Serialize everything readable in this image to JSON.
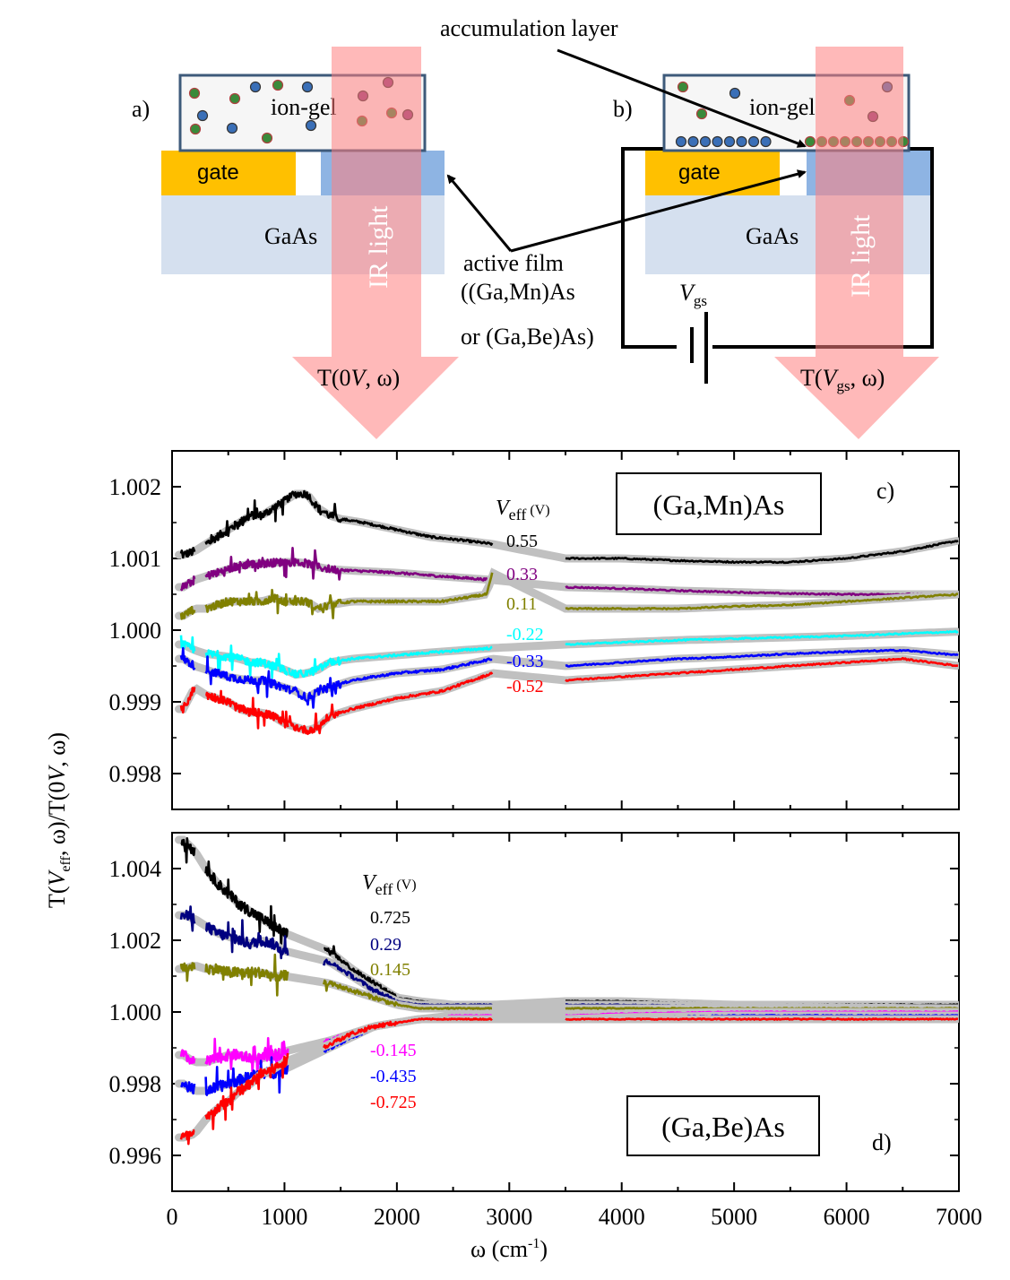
{
  "schematic": {
    "panel_a_label": "a)",
    "panel_b_label": "b)",
    "ion_gel": "ion-gel",
    "gate": "gate",
    "substrate": "GaAs",
    "ir_light": "IR light",
    "accumulation_layer": "accumulation layer",
    "active_film_line1": "active film",
    "active_film_line2": "((Ga,Mn)As",
    "active_film_line3": "or (Ga,Be)As)",
    "vgs_label": "V",
    "vgs_sub": "gs",
    "t0_prefix": "T(0",
    "t0_italic": "V",
    "t0_suffix": ", ω)",
    "tv_prefix": "T(",
    "tv_italic": "V",
    "tv_sub": "gs",
    "tv_suffix": ", ω)",
    "colors": {
      "gel_fill": "#f6f6f6",
      "gel_border": "#3d5a7a",
      "gate_fill": "#ffc000",
      "substrate_fill": "#d5e0ef",
      "film_fill": "#8eb4e3",
      "beam_fill": "#ff8080",
      "ion_blue": "#3a6fb7",
      "ion_green": "#3a8a3a",
      "ion_red_edge": "#b04040",
      "ion_purple": "#8a3a7a"
    }
  },
  "chart_data": [
    {
      "type": "line",
      "panel_label": "c)",
      "material": "(Ga,Mn)As",
      "legend_title": "V",
      "legend_title_sub": "eff",
      "legend_title_unit": "(V)",
      "ylim": [
        0.9975,
        1.0025
      ],
      "xlim": [
        0,
        7000
      ],
      "yticks": [
        "0.998",
        "0.999",
        "1.000",
        "1.001",
        "1.002"
      ],
      "series": [
        {
          "name": "0.55",
          "color": "#000000",
          "x": [
            100,
            200,
            300,
            400,
            500,
            600,
            700,
            800,
            900,
            1000,
            1100,
            1200,
            1300,
            1400,
            1500,
            1700,
            2000,
            2300,
            2600,
            2850,
            3500,
            4000,
            4500,
            5000,
            5500,
            6000,
            6500,
            7000
          ],
          "y": [
            1.00105,
            1.0011,
            1.0012,
            1.0013,
            1.0014,
            1.0015,
            1.0016,
            1.0016,
            1.0017,
            1.0018,
            1.0019,
            1.0019,
            1.0017,
            1.0016,
            1.00155,
            1.0015,
            1.0014,
            1.0013,
            1.00125,
            1.0012,
            1.001,
            1.001,
            1.00097,
            1.00095,
            1.00095,
            1.001,
            1.0011,
            1.00125
          ]
        },
        {
          "name": "0.33",
          "color": "#800080",
          "x": [
            100,
            200,
            300,
            400,
            500,
            600,
            700,
            800,
            900,
            1000,
            1100,
            1200,
            1300,
            1400,
            1600,
            2000,
            2400,
            2850,
            3500,
            4000,
            4500,
            5000,
            5500,
            6000,
            6500,
            7000
          ],
          "y": [
            1.0006,
            1.0007,
            1.00075,
            1.0008,
            1.00085,
            1.0009,
            1.00092,
            1.00093,
            1.00094,
            1.00095,
            1.00095,
            1.00093,
            1.00088,
            1.00085,
            1.00083,
            1.0008,
            1.00075,
            1.0007,
            1.0006,
            1.00058,
            1.00055,
            1.00053,
            1.00051,
            1.0005,
            1.0005,
            1.0005
          ]
        },
        {
          "name": "0.11",
          "color": "#808000",
          "x": [
            100,
            200,
            300,
            400,
            500,
            600,
            700,
            800,
            900,
            1000,
            1100,
            1200,
            1300,
            1400,
            1600,
            2000,
            2400,
            2800,
            2850,
            3500,
            4000,
            4500,
            5000,
            5500,
            6000,
            6500,
            7000
          ],
          "y": [
            1.0002,
            1.0003,
            1.0003,
            1.00035,
            1.0004,
            1.0004,
            1.0004,
            1.0004,
            1.00045,
            1.0004,
            1.0004,
            1.0004,
            1.0003,
            1.00035,
            1.0004,
            1.0004,
            1.0004,
            1.0005,
            1.0008,
            1.0003,
            1.0003,
            1.0003,
            1.00033,
            1.00035,
            1.0004,
            1.00045,
            1.0005
          ]
        },
        {
          "name": "-0.22",
          "color": "#00ffff",
          "x": [
            100,
            200,
            300,
            400,
            500,
            600,
            700,
            800,
            900,
            1000,
            1100,
            1200,
            1300,
            1400,
            1600,
            2000,
            2400,
            2850,
            3500,
            4000,
            4500,
            5000,
            5500,
            6000,
            6500,
            7000
          ],
          "y": [
            0.9998,
            0.99972,
            0.99967,
            0.99965,
            0.99963,
            0.9996,
            0.99955,
            0.99955,
            0.9995,
            0.99945,
            0.99938,
            0.9994,
            0.99945,
            0.99955,
            0.9996,
            0.99965,
            0.9997,
            0.99975,
            0.9998,
            0.99983,
            0.99986,
            0.99988,
            0.9999,
            0.99992,
            0.99995,
            0.99998
          ]
        },
        {
          "name": "-0.33",
          "color": "#0000ff",
          "x": [
            100,
            200,
            300,
            400,
            500,
            600,
            700,
            800,
            900,
            1000,
            1100,
            1200,
            1300,
            1400,
            1600,
            2000,
            2400,
            2850,
            3500,
            4000,
            4500,
            5000,
            5500,
            6000,
            6500,
            7000
          ],
          "y": [
            0.9996,
            0.9995,
            0.99945,
            0.9994,
            0.99935,
            0.99932,
            0.9993,
            0.9993,
            0.99925,
            0.9992,
            0.99915,
            0.99905,
            0.99915,
            0.9992,
            0.9993,
            0.9994,
            0.99945,
            0.9996,
            0.9995,
            0.99955,
            0.9996,
            0.99963,
            0.99967,
            0.9997,
            0.99972,
            0.99965
          ]
        },
        {
          "name": "-0.52",
          "color": "#ff0000",
          "x": [
            100,
            200,
            300,
            400,
            500,
            600,
            700,
            800,
            900,
            1000,
            1100,
            1200,
            1300,
            1400,
            1600,
            2000,
            2400,
            2850,
            3500,
            4000,
            4500,
            5000,
            5500,
            6000,
            6500,
            7000
          ],
          "y": [
            0.9989,
            0.9992,
            0.9991,
            0.99905,
            0.999,
            0.9989,
            0.99885,
            0.99885,
            0.9988,
            0.9987,
            0.99865,
            0.9986,
            0.99865,
            0.9988,
            0.9989,
            0.99905,
            0.99915,
            0.9994,
            0.9993,
            0.99935,
            0.9994,
            0.99945,
            0.9995,
            0.99955,
            0.9996,
            0.9995
          ]
        }
      ]
    },
    {
      "type": "line",
      "panel_label": "d)",
      "material": "(Ga,Be)As",
      "legend_title": "V",
      "legend_title_sub": "eff",
      "legend_title_unit": "(V)",
      "xlabel": "ω (cm",
      "xlabel_sup": "-1",
      "xlabel_end": ")",
      "ylabel_parts": [
        "T(",
        "V",
        "eff",
        ", ω)/T(0",
        "V",
        ", ω)"
      ],
      "ylim": [
        0.995,
        1.005
      ],
      "xlim": [
        0,
        7000
      ],
      "xticks": [
        "0",
        "1000",
        "2000",
        "3000",
        "4000",
        "5000",
        "6000",
        "7000"
      ],
      "yticks": [
        "0.996",
        "0.998",
        "1.000",
        "1.002",
        "1.004"
      ],
      "series": [
        {
          "name": "0.725",
          "color": "#000000",
          "x": [
            100,
            200,
            300,
            400,
            500,
            600,
            700,
            800,
            900,
            1000,
            1400,
            1600,
            1800,
            2000,
            2200,
            2500,
            2850,
            3500,
            4000,
            5000,
            6000,
            7000
          ],
          "y": [
            1.0048,
            1.0045,
            1.004,
            1.0036,
            1.0033,
            1.003,
            1.0028,
            1.0026,
            1.0024,
            1.0022,
            1.0017,
            1.0012,
            1.0008,
            1.0004,
            1.0003,
            1.0002,
            1.0002,
            1.0003,
            1.0003,
            1.0002,
            1.0002,
            1.0002
          ]
        },
        {
          "name": "0.29",
          "color": "#000080",
          "x": [
            100,
            200,
            300,
            400,
            500,
            600,
            700,
            800,
            900,
            1000,
            1400,
            1600,
            1800,
            2000,
            2200,
            2500,
            2850,
            3500,
            4000,
            5000,
            6000,
            7000
          ],
          "y": [
            1.0027,
            1.0026,
            1.0024,
            1.0022,
            1.0021,
            1.002,
            1.0019,
            1.002,
            1.0019,
            1.0017,
            1.0014,
            1.001,
            1.0006,
            1.0003,
            1.0002,
            1.0002,
            1.0002,
            1.0002,
            1.0002,
            1.00015,
            1.00012,
            1.0001
          ]
        },
        {
          "name": "0.145",
          "color": "#808000",
          "x": [
            100,
            200,
            300,
            400,
            500,
            600,
            700,
            800,
            900,
            1000,
            1400,
            1600,
            1800,
            2000,
            2200,
            2500,
            2850,
            3500,
            4000,
            5000,
            6000,
            7000
          ],
          "y": [
            1.0012,
            1.0013,
            1.0012,
            1.0012,
            1.0011,
            1.0011,
            1.0011,
            1.0011,
            1.001,
            1.001,
            1.0008,
            1.0006,
            1.0004,
            1.0002,
            1.0001,
            1.0001,
            1.0001,
            1.0001,
            1.0001,
            1.0001,
            1.0001,
            1.0001
          ]
        },
        {
          "name": "-0.145",
          "color": "#ff00ff",
          "x": [
            100,
            200,
            300,
            400,
            500,
            600,
            700,
            800,
            900,
            1000,
            1400,
            1600,
            1800,
            2000,
            2200,
            2500,
            2850,
            3500,
            4000,
            5000,
            6000,
            7000
          ],
          "y": [
            0.9988,
            0.9986,
            0.9986,
            0.9987,
            0.9988,
            0.9988,
            0.9987,
            0.9987,
            0.9988,
            0.9989,
            0.9992,
            0.9994,
            0.9996,
            0.9997,
            0.9998,
            0.9999,
            0.9999,
            0.9999,
            0.99995,
            1.0,
            1.0,
            1.0
          ]
        },
        {
          "name": "-0.435",
          "color": "#0000ff",
          "x": [
            100,
            200,
            300,
            400,
            500,
            600,
            700,
            800,
            900,
            1000,
            1400,
            1600,
            1800,
            2000,
            2200,
            2500,
            2850,
            3500,
            4000,
            5000,
            6000,
            7000
          ],
          "y": [
            0.998,
            0.9978,
            0.9978,
            0.9979,
            0.998,
            0.9981,
            0.9982,
            0.9983,
            0.9983,
            0.9984,
            0.999,
            0.9993,
            0.9996,
            0.9997,
            0.9998,
            0.9998,
            0.9998,
            0.9998,
            0.99985,
            0.9999,
            0.9999,
            0.9999
          ]
        },
        {
          "name": "-0.725",
          "color": "#ff0000",
          "x": [
            100,
            200,
            300,
            400,
            500,
            600,
            700,
            800,
            900,
            1000,
            1400,
            1600,
            1800,
            2000,
            2200,
            2500,
            2850,
            3500,
            4000,
            5000,
            6000,
            7000
          ],
          "y": [
            0.9965,
            0.9966,
            0.997,
            0.9973,
            0.9975,
            0.9978,
            0.998,
            0.9983,
            0.9984,
            0.9986,
            0.9991,
            0.9994,
            0.9996,
            0.9997,
            0.9998,
            0.9998,
            0.9998,
            0.9998,
            0.9998,
            0.9998,
            0.9998,
            0.9998
          ]
        }
      ]
    }
  ]
}
